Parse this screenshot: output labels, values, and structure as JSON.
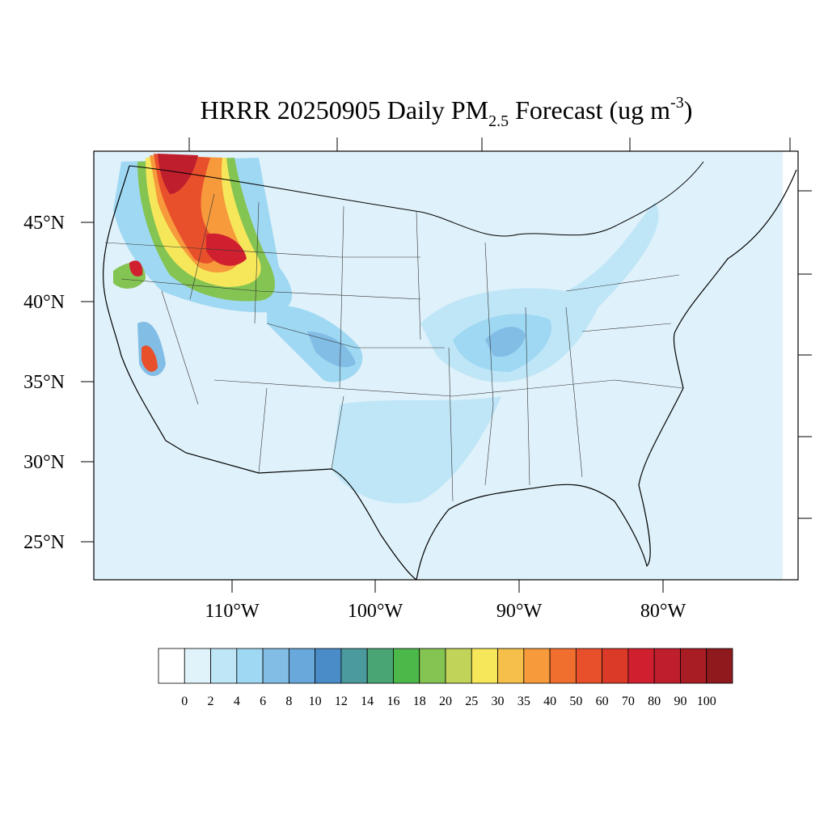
{
  "title": {
    "main": "HRRR 20250905 Daily PM",
    "sub": "2.5",
    "rest": "Forecast (ug m",
    "sup": "-3",
    "end": ")"
  },
  "map": {
    "lat_labels": [
      "45°N",
      "40°N",
      "35°N",
      "30°N",
      "25°N"
    ],
    "lon_labels": [
      "110°W",
      "100°W",
      "90°W",
      "80°W"
    ],
    "background_color": "#dff1fa"
  },
  "colorbar": {
    "levels": [
      0,
      2,
      4,
      6,
      8,
      10,
      12,
      14,
      16,
      18,
      20,
      25,
      30,
      35,
      40,
      50,
      60,
      70,
      80,
      90,
      100
    ],
    "colors": [
      "#ffffff",
      "#e0f3fb",
      "#bfe6f7",
      "#9fd8f3",
      "#82bde6",
      "#68a8da",
      "#4a8cc8",
      "#4a9a9e",
      "#4aa574",
      "#4db84a",
      "#84c452",
      "#c2d35a",
      "#f6e75a",
      "#f6bf4a",
      "#f69a3c",
      "#f06e2e",
      "#e8502c",
      "#dc3a28",
      "#d02030",
      "#bf1e2d",
      "#a81c24",
      "#8e1a1e"
    ]
  }
}
